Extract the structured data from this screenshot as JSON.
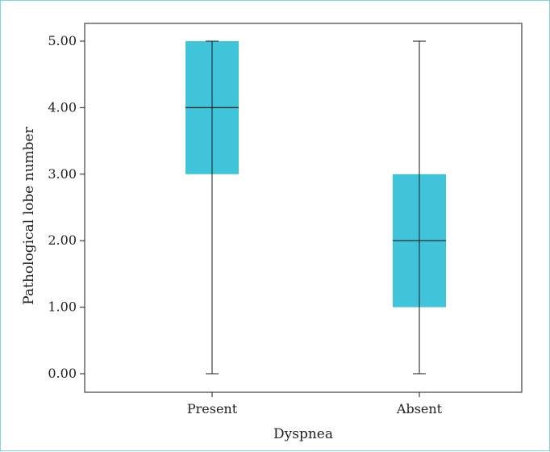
{
  "colors": {
    "box_fill": "#40c4da",
    "line": "#1a1a1a",
    "frame_border": "#7fd3dc"
  },
  "chart_data": {
    "type": "box",
    "title": "",
    "xlabel": "Dyspnea",
    "ylabel": "Pathological lobe number",
    "ylim": [
      0,
      5
    ],
    "ytick_values": [
      0,
      1,
      2,
      3,
      4,
      5
    ],
    "ytick_labels": [
      "0.00",
      "1.00",
      "2.00",
      "3.00",
      "4.00",
      "5.00"
    ],
    "categories": [
      "Present",
      "Absent"
    ],
    "boxes": [
      {
        "category": "Present",
        "min": 0,
        "q1": 3,
        "median": 4,
        "q3": 5,
        "max": 5
      },
      {
        "category": "Absent",
        "min": 0,
        "q1": 1,
        "median": 2,
        "q3": 3,
        "max": 5
      }
    ],
    "grid": false,
    "legend": "none"
  }
}
